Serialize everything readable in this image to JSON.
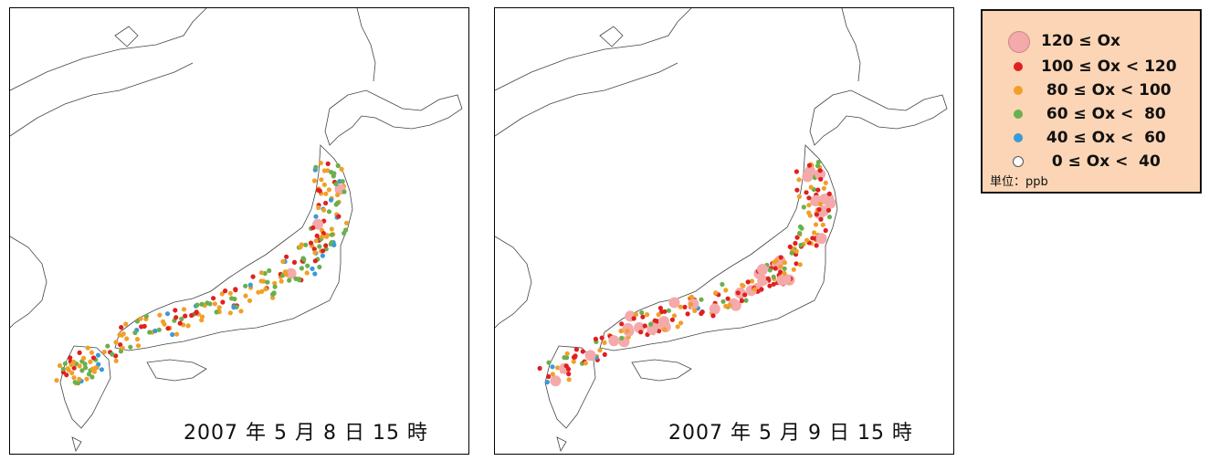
{
  "maps": [
    {
      "date_label": "2007 年 5 月 8 日 15 時"
    },
    {
      "date_label": "2007 年 5 月 9 日 15 時"
    }
  ],
  "legend": {
    "items": [
      {
        "label": "120 ≤ Ox",
        "color": "#f4a9aa"
      },
      {
        "label": "100 ≤ Ox < 120",
        "color": "#e02020"
      },
      {
        "label": " 80 ≤ Ox < 100",
        "color": "#f0a028"
      },
      {
        "label": " 60 ≤ Ox <  80",
        "color": "#6ab04c"
      },
      {
        "label": " 40 ≤ Ox <  60",
        "color": "#3a9ad9"
      },
      {
        "label": "  0 ≤ Ox <  40",
        "color": "#ffffff"
      }
    ],
    "unit": "単位：ppb"
  }
}
